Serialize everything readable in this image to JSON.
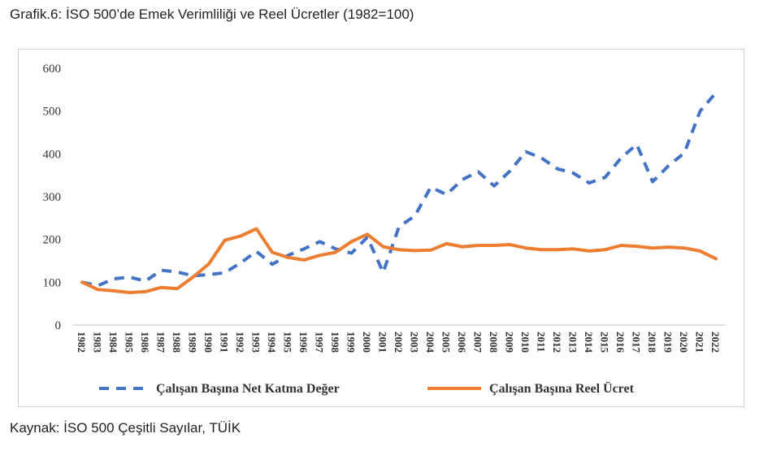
{
  "title": "Grafik.6: İSO 500’de Emek Verimliliği ve Reel Ücretler (1982=100)",
  "source": "Kaynak: İSO 500 Çeşitli Sayılar, TÜİK",
  "colors": {
    "series1": "#4472C4",
    "series2": "#ED7D31",
    "axis": "#bfbfbf"
  },
  "chart_data": {
    "type": "line",
    "title": "Grafik.6: İSO 500’de Emek Verimliliği ve Reel Ücretler (1982=100)",
    "xlabel": "",
    "ylabel": "",
    "ylim": [
      0,
      600
    ],
    "yticks": [
      0,
      100,
      200,
      300,
      400,
      500,
      600
    ],
    "grid": false,
    "legend_position": "bottom",
    "categories": [
      "1982",
      "1983",
      "1984",
      "1985",
      "1986",
      "1987",
      "1988",
      "1989",
      "1990",
      "1991",
      "1992",
      "1993",
      "1994",
      "1995",
      "1996",
      "1997",
      "1998",
      "1999",
      "2000",
      "2001",
      "2002",
      "2003",
      "2004",
      "2005",
      "2006",
      "2007",
      "2008",
      "2009",
      "2010",
      "2011",
      "2012",
      "2013",
      "2014",
      "2015",
      "2016",
      "2017",
      "2018",
      "2019",
      "2020",
      "2021",
      "2022"
    ],
    "series": [
      {
        "name": "Çalışan Başına Net Katma Değer",
        "style": "dashed",
        "color": "#4472C4",
        "values": [
          100,
          92,
          108,
          112,
          103,
          128,
          124,
          115,
          118,
          122,
          145,
          172,
          142,
          163,
          178,
          195,
          178,
          168,
          205,
          123,
          230,
          255,
          322,
          305,
          340,
          358,
          325,
          360,
          405,
          390,
          365,
          355,
          332,
          345,
          390,
          422,
          335,
          372,
          402,
          500,
          543
        ]
      },
      {
        "name": "Çalışan Başına Reel Ücret",
        "style": "solid",
        "color": "#ED7D31",
        "values": [
          100,
          83,
          80,
          76,
          78,
          88,
          85,
          112,
          143,
          198,
          208,
          225,
          170,
          158,
          152,
          163,
          170,
          195,
          212,
          183,
          176,
          174,
          175,
          190,
          183,
          186,
          186,
          188,
          180,
          176,
          176,
          178,
          173,
          176,
          186,
          184,
          180,
          182,
          180,
          173,
          155
        ]
      }
    ]
  }
}
